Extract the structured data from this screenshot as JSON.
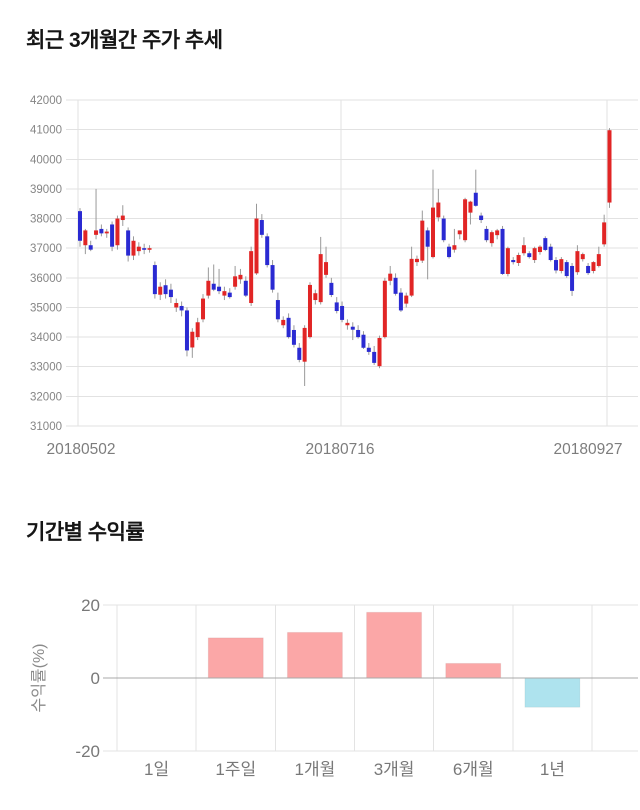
{
  "chart_data": [
    {
      "type": "candlestick",
      "title": "최근 3개월간 주가 추세",
      "ylabel": "",
      "xlabel": "",
      "ylim": [
        31000,
        42000
      ],
      "ytick_step": 1000,
      "yticks": [
        42000,
        41000,
        40000,
        39000,
        38000,
        37000,
        36000,
        35000,
        34000,
        33000,
        32000,
        31000
      ],
      "xticks": [
        "20180502",
        "20180716",
        "20180927"
      ],
      "grid": true,
      "up_color": "#e12525",
      "down_color": "#2a2ad2",
      "wick_color": "#999999",
      "grid_color": "#e2e2e2",
      "tick_color": "#858585",
      "ohlc": [
        [
          38250,
          38350,
          37050,
          37250
        ],
        [
          37100,
          37650,
          36800,
          37600
        ],
        [
          37100,
          37250,
          36900,
          36950
        ],
        [
          37450,
          39000,
          37300,
          37600
        ],
        [
          37650,
          37800,
          37400,
          37500
        ],
        [
          37500,
          37650,
          37350,
          37560
        ],
        [
          37800,
          37900,
          36900,
          37050
        ],
        [
          37100,
          38100,
          36950,
          38000
        ],
        [
          37950,
          38450,
          37750,
          38100
        ],
        [
          37600,
          37700,
          36550,
          36750
        ],
        [
          36750,
          37400,
          36600,
          37250
        ],
        [
          36900,
          37200,
          36750,
          37050
        ],
        [
          37000,
          37150,
          36800,
          36950
        ],
        [
          36950,
          37100,
          36850,
          37000
        ],
        [
          36430,
          36550,
          35300,
          35450
        ],
        [
          35430,
          35850,
          35250,
          35700
        ],
        [
          35750,
          35950,
          35300,
          35450
        ],
        [
          35600,
          35800,
          35150,
          35350
        ],
        [
          35000,
          35300,
          34850,
          35150
        ],
        [
          35050,
          35200,
          34700,
          34900
        ],
        [
          34900,
          35000,
          33350,
          33550
        ],
        [
          33650,
          34300,
          33300,
          34180
        ],
        [
          34000,
          34650,
          33900,
          34500
        ],
        [
          34600,
          35450,
          34500,
          35300
        ],
        [
          35400,
          36350,
          35300,
          35900
        ],
        [
          35800,
          36450,
          35550,
          35600
        ],
        [
          35700,
          36300,
          35450,
          35550
        ],
        [
          35400,
          35700,
          35250,
          35550
        ],
        [
          35500,
          35650,
          35300,
          35350
        ],
        [
          35700,
          36400,
          35600,
          36050
        ],
        [
          35950,
          36300,
          35800,
          36100
        ],
        [
          35900,
          36050,
          35350,
          35400
        ],
        [
          35150,
          37050,
          35050,
          36900
        ],
        [
          36150,
          38500,
          36100,
          38000
        ],
        [
          37950,
          38150,
          37350,
          37450
        ],
        [
          37400,
          37500,
          36350,
          36430
        ],
        [
          36430,
          36600,
          35500,
          35600
        ],
        [
          35250,
          35500,
          34500,
          34600
        ],
        [
          34400,
          34700,
          34300,
          34580
        ],
        [
          34650,
          34800,
          33950,
          34000
        ],
        [
          34240,
          34400,
          33650,
          33740
        ],
        [
          33640,
          33800,
          33150,
          33230
        ],
        [
          33170,
          34400,
          32350,
          34310
        ],
        [
          34000,
          35850,
          33950,
          35760
        ],
        [
          35250,
          35600,
          35100,
          35480
        ],
        [
          35180,
          37380,
          35100,
          36800
        ],
        [
          36100,
          37050,
          36000,
          36530
        ],
        [
          35830,
          36000,
          35350,
          35420
        ],
        [
          35170,
          35350,
          34800,
          34880
        ],
        [
          35050,
          35200,
          34500,
          34580
        ],
        [
          34400,
          34600,
          34250,
          34480
        ],
        [
          34350,
          34500,
          33900,
          34250
        ],
        [
          34240,
          34400,
          33950,
          34000
        ],
        [
          34080,
          34200,
          33600,
          33640
        ],
        [
          33640,
          33800,
          33400,
          33500
        ],
        [
          33500,
          33700,
          33060,
          33130
        ],
        [
          33020,
          34050,
          32950,
          33970
        ],
        [
          34000,
          36000,
          33950,
          35900
        ],
        [
          35900,
          36400,
          35750,
          36140
        ],
        [
          36000,
          36150,
          35400,
          35460
        ],
        [
          35500,
          35650,
          34850,
          34900
        ],
        [
          35130,
          35500,
          35000,
          35400
        ],
        [
          35400,
          37050,
          35350,
          36640
        ],
        [
          36530,
          36750,
          36400,
          36640
        ],
        [
          36580,
          38270,
          36500,
          37930
        ],
        [
          37600,
          37700,
          35950,
          37050
        ],
        [
          36700,
          39650,
          36650,
          38370
        ],
        [
          38040,
          39000,
          37900,
          38540
        ],
        [
          38000,
          38100,
          37200,
          37270
        ],
        [
          37050,
          37150,
          36650,
          36700
        ],
        [
          36950,
          37650,
          36850,
          37100
        ],
        [
          37470,
          37600,
          37300,
          37600
        ],
        [
          37270,
          38700,
          37200,
          38650
        ],
        [
          38200,
          38600,
          37800,
          38570
        ],
        [
          38870,
          39650,
          38400,
          38430
        ],
        [
          38100,
          38200,
          37850,
          37950
        ],
        [
          37650,
          37750,
          37200,
          37270
        ],
        [
          37170,
          37600,
          37050,
          37540
        ],
        [
          37440,
          37650,
          37300,
          37600
        ],
        [
          37650,
          37750,
          36100,
          36130
        ],
        [
          36130,
          37050,
          36050,
          37000
        ],
        [
          36600,
          36700,
          36450,
          36530
        ],
        [
          36500,
          36850,
          36400,
          36770
        ],
        [
          36830,
          37370,
          36750,
          37100
        ],
        [
          36830,
          36900,
          36650,
          36700
        ],
        [
          36600,
          37050,
          36500,
          37000
        ],
        [
          36870,
          37100,
          36780,
          37050
        ],
        [
          37340,
          37400,
          36900,
          36940
        ],
        [
          37050,
          37150,
          36550,
          36600
        ],
        [
          36600,
          36700,
          36150,
          36250
        ],
        [
          36230,
          36700,
          36150,
          36630
        ],
        [
          36530,
          36600,
          36000,
          36060
        ],
        [
          36400,
          36500,
          35390,
          35560
        ],
        [
          36190,
          37100,
          36100,
          36900
        ],
        [
          36630,
          36850,
          36550,
          36800
        ],
        [
          36400,
          36500,
          36100,
          36160
        ],
        [
          36230,
          36560,
          36150,
          36530
        ],
        [
          36400,
          37050,
          36350,
          36800
        ],
        [
          37130,
          38130,
          37050,
          37870
        ],
        [
          38540,
          41050,
          38360,
          40980
        ]
      ]
    },
    {
      "type": "bar",
      "title": "기간별 수익률",
      "categories": [
        "1일",
        "1주일",
        "1개월",
        "3개월",
        "6개월",
        "1년"
      ],
      "values": [
        0,
        11,
        12.5,
        18,
        4,
        -8
      ],
      "ylabel": "수익률(%)",
      "xlabel": "",
      "yticks": [
        20,
        0,
        -20
      ],
      "ylim": [
        -20,
        20
      ],
      "grid": true,
      "legend": "none",
      "positive_color": "#fba7a7",
      "negative_color": "#aee3ee",
      "zero_line_color": "#a8a8a8",
      "grid_color": "#e3e3e3",
      "tick_color": "#787878"
    }
  ]
}
